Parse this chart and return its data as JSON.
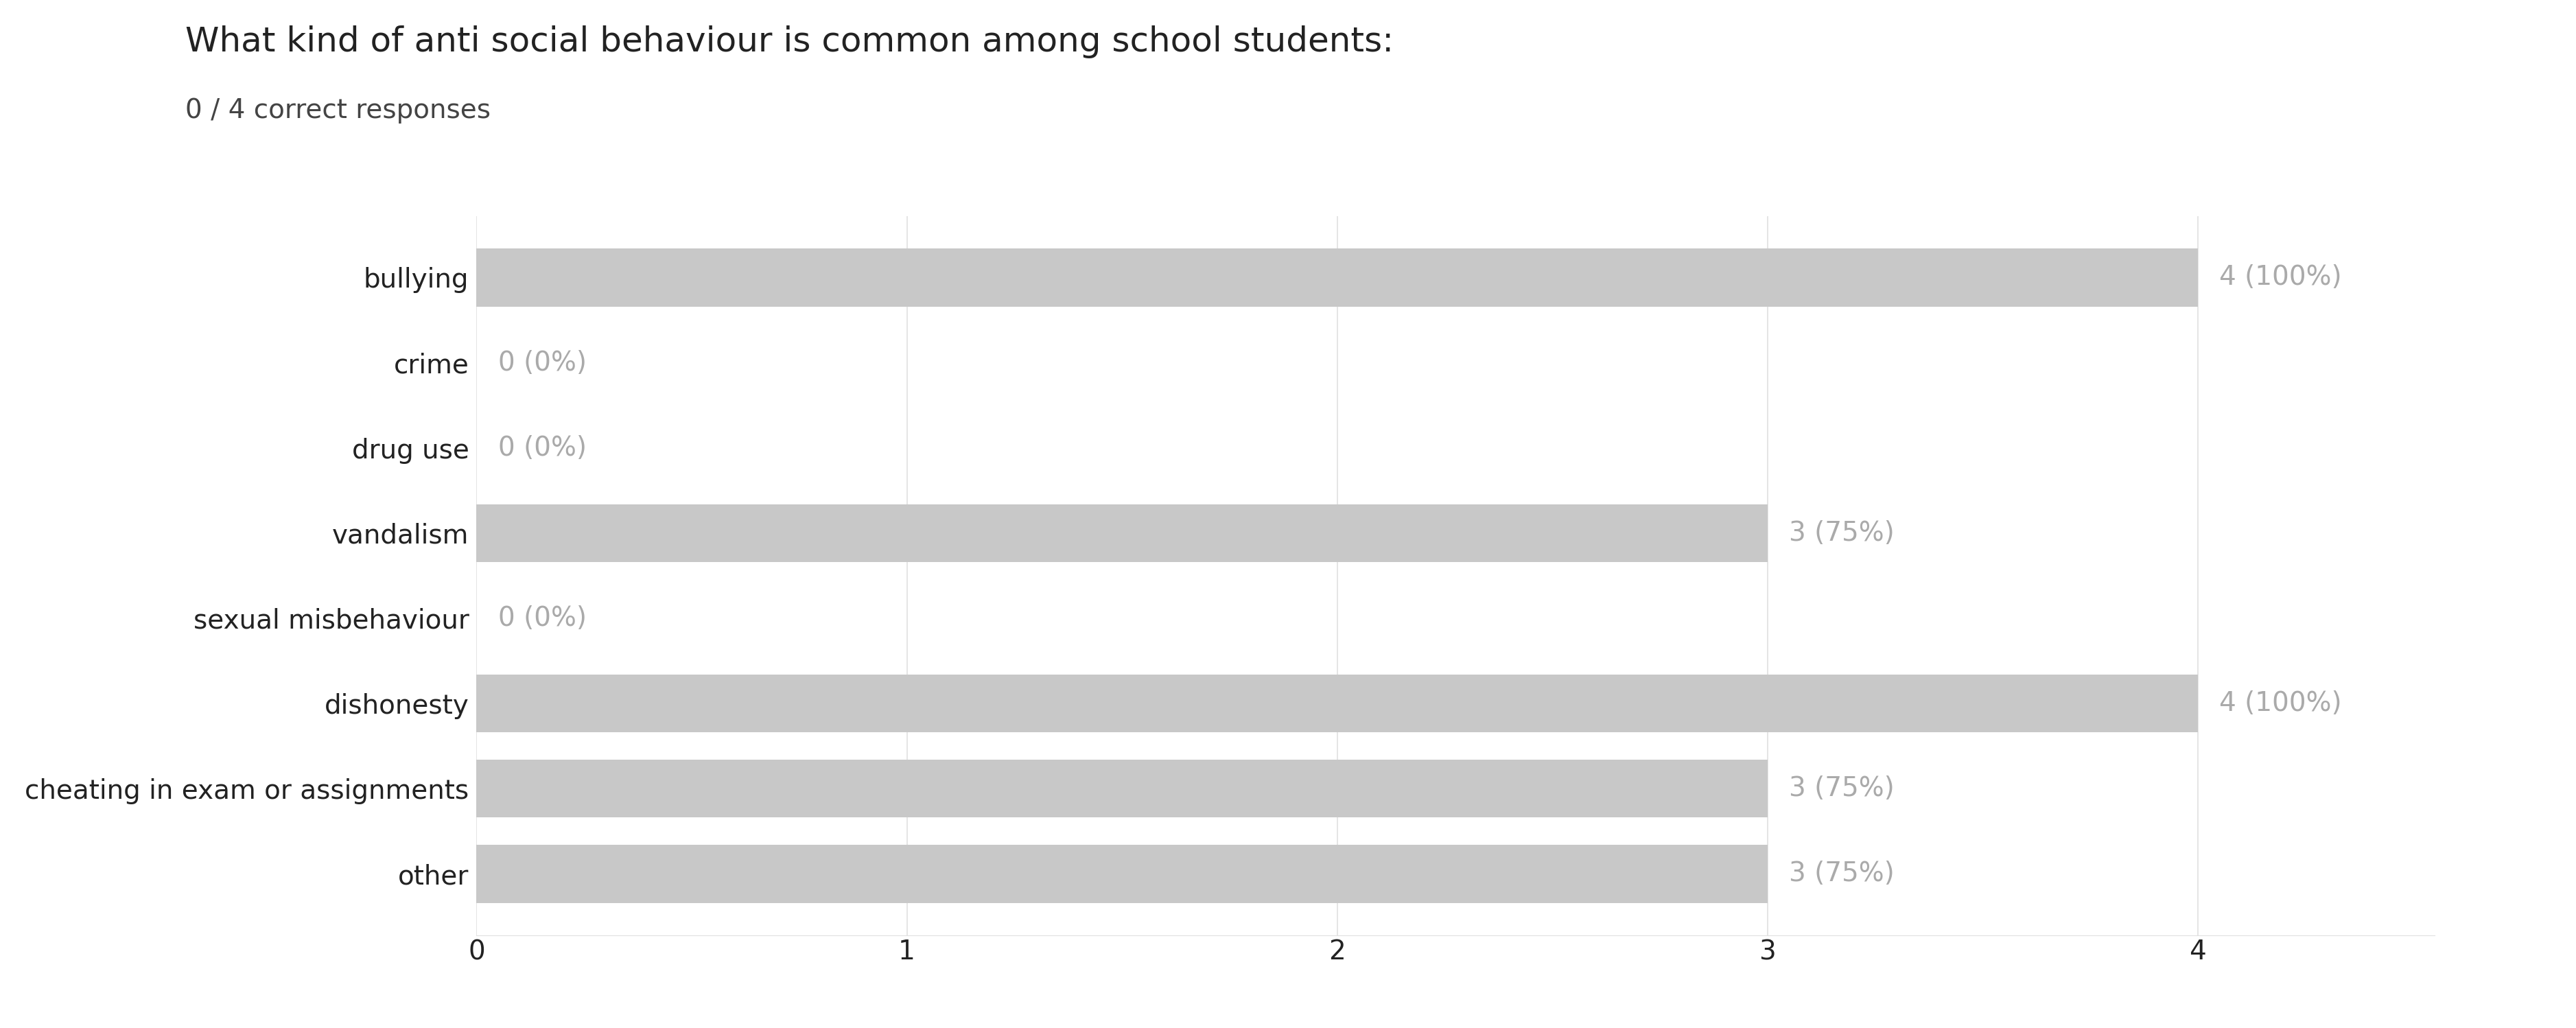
{
  "title": "What kind of anti social behaviour is common among school students:",
  "subtitle": "0 / 4 correct responses",
  "categories": [
    "bullying",
    "crime",
    "drug use",
    "vandalism",
    "sexual misbehaviour",
    "dishonesty",
    "cheating in exam or assignments",
    "other"
  ],
  "values": [
    4,
    0,
    0,
    3,
    0,
    4,
    3,
    3
  ],
  "labels": [
    "4 (100%)",
    "0 (0%)",
    "0 (0%)",
    "3 (75%)",
    "0 (0%)",
    "4 (100%)",
    "3 (75%)",
    "3 (75%)"
  ],
  "bar_color": "#c8c8c8",
  "background_color": "#ffffff",
  "title_fontsize": 36,
  "subtitle_fontsize": 28,
  "label_fontsize": 28,
  "tick_fontsize": 28,
  "xlim": [
    0,
    4.55
  ],
  "xticks": [
    0,
    1,
    2,
    3,
    4
  ],
  "grid_color": "#e0e0e0",
  "label_color": "#aaaaaa",
  "title_color": "#222222",
  "subtitle_color": "#444444",
  "ytick_color": "#222222",
  "bar_height": 0.68
}
